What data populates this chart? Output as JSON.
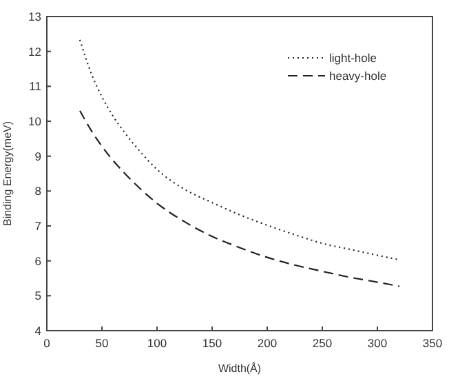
{
  "chart_data": {
    "type": "line",
    "xlabel": "Width(Å)",
    "ylabel": "Binding Energy(meV)",
    "xlim": [
      0,
      350
    ],
    "xticks": [
      0,
      50,
      100,
      150,
      200,
      250,
      300,
      350
    ],
    "ylim": [
      4,
      13
    ],
    "yticks": [
      4,
      5,
      6,
      7,
      8,
      9,
      10,
      11,
      12,
      13
    ],
    "legend": "top right",
    "grid": false,
    "series": [
      {
        "name": "light-hole",
        "color": "#222222",
        "line_style": "dotted",
        "x": [
          30,
          40,
          50,
          60,
          70,
          85,
          100,
          125,
          150,
          175,
          200,
          225,
          250,
          275,
          300,
          320
        ],
        "values": [
          12.33,
          11.4,
          10.7,
          10.15,
          9.7,
          9.12,
          8.62,
          8.05,
          7.67,
          7.32,
          7.02,
          6.75,
          6.5,
          6.33,
          6.16,
          6.03
        ]
      },
      {
        "name": "heavy-hole",
        "color": "#222222",
        "line_style": "dashed",
        "x": [
          30,
          40,
          50,
          60,
          70,
          85,
          100,
          125,
          150,
          175,
          200,
          225,
          250,
          275,
          300,
          320
        ],
        "values": [
          10.3,
          9.75,
          9.28,
          8.88,
          8.53,
          8.06,
          7.65,
          7.12,
          6.7,
          6.38,
          6.1,
          5.88,
          5.7,
          5.53,
          5.39,
          5.27
        ]
      }
    ]
  }
}
